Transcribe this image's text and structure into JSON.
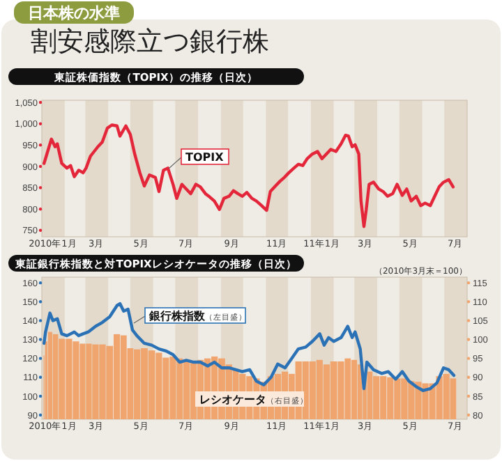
{
  "chart_data": [
    {
      "type": "line",
      "title": "割安感際立つ銀行株",
      "subtitle": "東証株価指数（TOPIX）の推移（日次）",
      "annotations": [
        "日本株の水準"
      ],
      "xlim": [
        "2010-01-01",
        "2011-08-01"
      ],
      "xticks": [
        {
          "value": "2010-01-16",
          "label": "2010年1月"
        },
        {
          "value": "2010-03-16",
          "label": "3月"
        },
        {
          "value": "2010-05-16",
          "label": "5月"
        },
        {
          "value": "2010-07-16",
          "label": "7月"
        },
        {
          "value": "2010-09-16",
          "label": "9月"
        },
        {
          "value": "2010-11-16",
          "label": "11月"
        },
        {
          "value": "2011-01-16",
          "label": "11年1月"
        },
        {
          "value": "2011-03-16",
          "label": "3月"
        },
        {
          "value": "2011-05-16",
          "label": "5月"
        },
        {
          "value": "2011-07-16",
          "label": "7月"
        }
      ],
      "ylim": [
        735,
        1055
      ],
      "yticks": [
        {
          "value": 750,
          "label": "750"
        },
        {
          "value": 800,
          "label": "800"
        },
        {
          "value": 850,
          "label": "850"
        },
        {
          "value": 900,
          "label": "900"
        },
        {
          "value": 950,
          "label": "950"
        },
        {
          "value": 1000,
          "label": "1,000"
        },
        {
          "value": 1050,
          "label": "1,050"
        }
      ],
      "bands": [
        {
          "axis": "x",
          "from": "2010-01-01",
          "to": "2010-02-01",
          "color": "#e3dacb"
        },
        {
          "axis": "x",
          "from": "2010-03-01",
          "to": "2010-04-01",
          "color": "#e3dacb"
        },
        {
          "axis": "x",
          "from": "2010-05-01",
          "to": "2010-06-01",
          "color": "#e3dacb"
        },
        {
          "axis": "x",
          "from": "2010-07-01",
          "to": "2010-08-01",
          "color": "#e3dacb"
        },
        {
          "axis": "x",
          "from": "2010-09-01",
          "to": "2010-10-01",
          "color": "#e3dacb"
        },
        {
          "axis": "x",
          "from": "2010-11-01",
          "to": "2010-12-01",
          "color": "#e3dacb"
        },
        {
          "axis": "x",
          "from": "2011-01-01",
          "to": "2011-02-01",
          "color": "#e3dacb"
        },
        {
          "axis": "x",
          "from": "2011-03-01",
          "to": "2011-04-01",
          "color": "#e3dacb"
        },
        {
          "axis": "x",
          "from": "2011-05-01",
          "to": "2011-06-01",
          "color": "#e3dacb"
        },
        {
          "axis": "x",
          "from": "2011-07-01",
          "to": "2011-08-01",
          "color": "#e3dacb"
        }
      ],
      "series": [
        {
          "name": "TOPIX",
          "color": "#e3263a",
          "x": [
            "2010-01-04",
            "2010-01-07",
            "2010-01-14",
            "2010-01-19",
            "2010-01-22",
            "2010-01-28",
            "2010-02-04",
            "2010-02-09",
            "2010-02-14",
            "2010-02-20",
            "2010-02-26",
            "2010-03-02",
            "2010-03-08",
            "2010-03-18",
            "2010-03-24",
            "2010-03-31",
            "2010-04-06",
            "2010-04-13",
            "2010-04-17",
            "2010-04-25",
            "2010-05-01",
            "2010-05-07",
            "2010-05-14",
            "2010-05-20",
            "2010-05-27",
            "2010-06-04",
            "2010-06-09",
            "2010-06-15",
            "2010-06-21",
            "2010-06-28",
            "2010-07-03",
            "2010-07-10",
            "2010-07-16",
            "2010-07-22",
            "2010-07-29",
            "2010-08-04",
            "2010-08-11",
            "2010-08-17",
            "2010-08-23",
            "2010-08-30",
            "2010-09-05",
            "2010-09-12",
            "2010-09-18",
            "2010-09-24",
            "2010-09-30",
            "2010-10-06",
            "2010-10-13",
            "2010-10-19",
            "2010-10-25",
            "2010-11-02",
            "2010-11-07",
            "2010-11-14",
            "2010-11-20",
            "2010-11-26",
            "2010-12-02",
            "2010-12-09",
            "2010-12-15",
            "2010-12-21",
            "2010-12-27",
            "2011-01-03",
            "2011-01-10",
            "2011-01-16",
            "2011-01-22",
            "2011-01-28",
            "2011-02-04",
            "2011-02-11",
            "2011-02-17",
            "2011-02-21",
            "2011-02-26",
            "2011-03-02",
            "2011-03-07",
            "2011-03-10",
            "2011-03-14",
            "2011-03-17",
            "2011-03-21",
            "2011-03-27",
            "2011-04-03",
            "2011-04-09",
            "2011-04-15",
            "2011-04-22",
            "2011-04-28",
            "2011-05-05",
            "2011-05-11",
            "2011-05-17",
            "2011-05-24",
            "2011-05-30",
            "2011-06-05",
            "2011-06-12",
            "2011-06-18",
            "2011-06-24",
            "2011-06-30",
            "2011-07-07",
            "2011-07-13"
          ],
          "values": [
            907,
            924,
            964,
            946,
            953,
            907,
            896,
            902,
            876,
            891,
            885,
            896,
            924,
            946,
            957,
            990,
            997,
            995,
            971,
            995,
            975,
            929,
            885,
            854,
            880,
            874,
            841,
            891,
            896,
            858,
            825,
            858,
            847,
            836,
            858,
            852,
            836,
            828,
            819,
            799,
            825,
            830,
            843,
            836,
            830,
            839,
            825,
            819,
            810,
            797,
            841,
            854,
            865,
            874,
            885,
            896,
            905,
            902,
            918,
            929,
            935,
            918,
            929,
            940,
            935,
            953,
            973,
            971,
            946,
            951,
            929,
            819,
            759,
            797,
            858,
            863,
            847,
            841,
            830,
            836,
            858,
            832,
            847,
            819,
            830,
            808,
            814,
            808,
            830,
            852,
            863,
            869,
            852
          ]
        }
      ]
    },
    {
      "type": "line",
      "title": "東証銀行株指数と対TOPIXレシオケータの推移（日次）",
      "annotations": [
        "（2010年3月末＝100）"
      ],
      "xlim": [
        "2010-01-01",
        "2011-08-01"
      ],
      "xticks": [
        {
          "value": "2010-01-16",
          "label": "2010年1月"
        },
        {
          "value": "2010-03-16",
          "label": "3月"
        },
        {
          "value": "2010-05-16",
          "label": "5月"
        },
        {
          "value": "2010-07-16",
          "label": "7月"
        },
        {
          "value": "2010-09-16",
          "label": "9月"
        },
        {
          "value": "2010-11-16",
          "label": "11月"
        },
        {
          "value": "2011-01-16",
          "label": "11年1月"
        },
        {
          "value": "2011-03-16",
          "label": "3月"
        },
        {
          "value": "2011-05-16",
          "label": "5月"
        },
        {
          "value": "2011-07-16",
          "label": "7月"
        }
      ],
      "ylim": [
        87.8,
        163
      ],
      "yticks": [
        90,
        100,
        110,
        120,
        130,
        140,
        150,
        160
      ],
      "y2lim": [
        78.9,
        116.5
      ],
      "y2ticks": [
        80,
        85,
        90,
        95,
        100,
        105,
        110,
        115
      ],
      "bands": [
        {
          "axis": "x",
          "from": "2010-01-01",
          "to": "2010-02-01",
          "color": "#e3dacb"
        },
        {
          "axis": "x",
          "from": "2010-03-01",
          "to": "2010-04-01",
          "color": "#e3dacb"
        },
        {
          "axis": "x",
          "from": "2010-05-01",
          "to": "2010-06-01",
          "color": "#e3dacb"
        },
        {
          "axis": "x",
          "from": "2010-07-01",
          "to": "2010-08-01",
          "color": "#e3dacb"
        },
        {
          "axis": "x",
          "from": "2010-09-01",
          "to": "2010-10-01",
          "color": "#e3dacb"
        },
        {
          "axis": "x",
          "from": "2010-11-01",
          "to": "2010-12-01",
          "color": "#e3dacb"
        },
        {
          "axis": "x",
          "from": "2011-01-01",
          "to": "2011-02-01",
          "color": "#e3dacb"
        },
        {
          "axis": "x",
          "from": "2011-03-01",
          "to": "2011-04-01",
          "color": "#e3dacb"
        },
        {
          "axis": "x",
          "from": "2011-05-01",
          "to": "2011-06-01",
          "color": "#e3dacb"
        },
        {
          "axis": "x",
          "from": "2011-07-01",
          "to": "2011-08-01",
          "color": "#e3dacb"
        }
      ],
      "series": [
        {
          "name": "レシオケータ（右目盛）",
          "type": "bar",
          "axis": "y2",
          "color": "#f0a56f",
          "x": [
            "2010-01-04",
            "2010-01-06",
            "2010-01-12",
            "2010-01-19",
            "2010-01-28",
            "2010-02-07",
            "2010-02-16",
            "2010-02-26",
            "2010-03-05",
            "2010-03-15",
            "2010-03-24",
            "2010-04-03",
            "2010-04-13",
            "2010-04-22",
            "2010-05-01",
            "2010-05-10",
            "2010-05-20",
            "2010-05-30",
            "2010-06-09",
            "2010-06-18",
            "2010-06-28",
            "2010-07-07",
            "2010-07-16",
            "2010-07-26",
            "2010-08-04",
            "2010-08-14",
            "2010-08-23",
            "2010-09-02",
            "2010-09-12",
            "2010-09-21",
            "2010-09-30",
            "2010-10-10",
            "2010-10-19",
            "2010-10-29",
            "2010-11-08",
            "2010-11-17",
            "2010-11-27",
            "2010-12-06",
            "2010-12-15",
            "2010-12-25",
            "2011-01-03",
            "2011-01-13",
            "2011-01-22",
            "2011-02-01",
            "2011-02-11",
            "2011-02-20",
            "2011-03-01",
            "2011-03-09",
            "2011-03-15",
            "2011-03-21",
            "2011-03-31",
            "2011-04-09",
            "2011-04-19",
            "2011-04-28",
            "2011-05-08",
            "2011-05-17",
            "2011-05-27",
            "2011-06-05",
            "2011-06-15",
            "2011-06-24",
            "2011-07-04",
            "2011-07-13"
          ],
          "values": [
            95.8,
            99.5,
            102,
            101.4,
            100.2,
            100.2,
            99.5,
            98.9,
            98.9,
            98.7,
            98.7,
            98.3,
            101.4,
            101.1,
            97.7,
            97.4,
            97.7,
            97.1,
            96.5,
            95.2,
            95.5,
            95,
            94.6,
            94.2,
            94.6,
            95,
            95.5,
            95,
            93.4,
            92.1,
            90.9,
            90.3,
            89.7,
            88.8,
            90.3,
            90.9,
            91.5,
            90.9,
            94.2,
            94.2,
            94.2,
            94.6,
            93.4,
            94.2,
            94.2,
            95,
            94.6,
            93.4,
            90.3,
            91.5,
            90.3,
            90.3,
            90,
            89.7,
            89.7,
            89,
            88.8,
            88.4,
            88.4,
            90.3,
            90.9,
            89.7
          ]
        },
        {
          "name": "銀行株指数（左目盛）",
          "color": "#2a72b5",
          "x": [
            "2010-01-04",
            "2010-01-06",
            "2010-01-12",
            "2010-01-16",
            "2010-01-22",
            "2010-01-28",
            "2010-02-04",
            "2010-02-14",
            "2010-02-20",
            "2010-02-26",
            "2010-03-05",
            "2010-03-15",
            "2010-03-24",
            "2010-04-03",
            "2010-04-13",
            "2010-04-17",
            "2010-04-22",
            "2010-04-28",
            "2010-05-04",
            "2010-05-10",
            "2010-05-20",
            "2010-05-30",
            "2010-06-09",
            "2010-06-18",
            "2010-06-28",
            "2010-07-07",
            "2010-07-16",
            "2010-07-26",
            "2010-08-04",
            "2010-08-14",
            "2010-08-23",
            "2010-09-02",
            "2010-09-12",
            "2010-09-21",
            "2010-09-30",
            "2010-10-10",
            "2010-10-19",
            "2010-10-29",
            "2010-11-08",
            "2010-11-17",
            "2010-11-27",
            "2010-12-06",
            "2010-12-15",
            "2010-12-25",
            "2011-01-03",
            "2011-01-13",
            "2011-01-19",
            "2011-01-25",
            "2011-02-01",
            "2011-02-11",
            "2011-02-20",
            "2011-02-26",
            "2011-03-02",
            "2011-03-09",
            "2011-03-14",
            "2011-03-18",
            "2011-03-27",
            "2011-04-07",
            "2011-04-16",
            "2011-04-26",
            "2011-05-05",
            "2011-05-14",
            "2011-05-24",
            "2011-06-02",
            "2011-06-12",
            "2011-06-21",
            "2011-06-30",
            "2011-07-07",
            "2011-07-14"
          ],
          "values": [
            128,
            134,
            144,
            140,
            141,
            133,
            132,
            134,
            132,
            133,
            134,
            137,
            139,
            142,
            148,
            149,
            145,
            146,
            135,
            132,
            128,
            127,
            125,
            124,
            122,
            118,
            119,
            118,
            118,
            116,
            118,
            115,
            115,
            114,
            113,
            114,
            108,
            106,
            110,
            117,
            115,
            120,
            125,
            126,
            129,
            133,
            127,
            131,
            129,
            131,
            137,
            131,
            134,
            125,
            104,
            118,
            114,
            112,
            113,
            109,
            113,
            108,
            105,
            103,
            104,
            107,
            115,
            114,
            111
          ]
        }
      ]
    }
  ]
}
